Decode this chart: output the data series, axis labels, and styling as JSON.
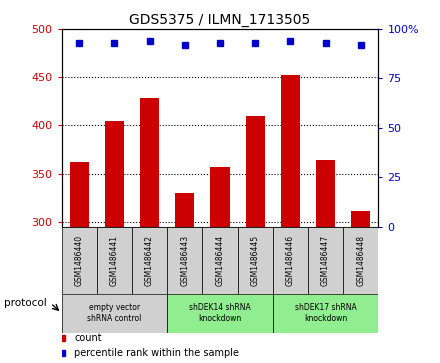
{
  "title": "GDS5375 / ILMN_1713505",
  "samples": [
    "GSM1486440",
    "GSM1486441",
    "GSM1486442",
    "GSM1486443",
    "GSM1486444",
    "GSM1486445",
    "GSM1486446",
    "GSM1486447",
    "GSM1486448"
  ],
  "counts": [
    362,
    405,
    428,
    330,
    357,
    410,
    452,
    364,
    311
  ],
  "percentiles": [
    93,
    93,
    94,
    92,
    93,
    93,
    94,
    93,
    92
  ],
  "ylim_left": [
    295,
    500
  ],
  "ylim_right": [
    0,
    100
  ],
  "yticks_left": [
    300,
    350,
    400,
    450,
    500
  ],
  "yticks_right": [
    0,
    25,
    50,
    75,
    100
  ],
  "bar_color": "#cc0000",
  "dot_color": "#0000cc",
  "groups": [
    {
      "label": "empty vector\nshRNA control",
      "start": 0,
      "end": 3,
      "color": "#d0d0d0"
    },
    {
      "label": "shDEK14 shRNA\nknockdown",
      "start": 3,
      "end": 6,
      "color": "#90ee90"
    },
    {
      "label": "shDEK17 shRNA\nknockdown",
      "start": 6,
      "end": 9,
      "color": "#90ee90"
    }
  ],
  "protocol_label": "protocol",
  "legend_count_label": "count",
  "legend_percentile_label": "percentile rank within the sample",
  "tick_color_left": "#cc0000",
  "tick_color_right": "#0000cc",
  "sample_box_color": "#d0d0d0"
}
